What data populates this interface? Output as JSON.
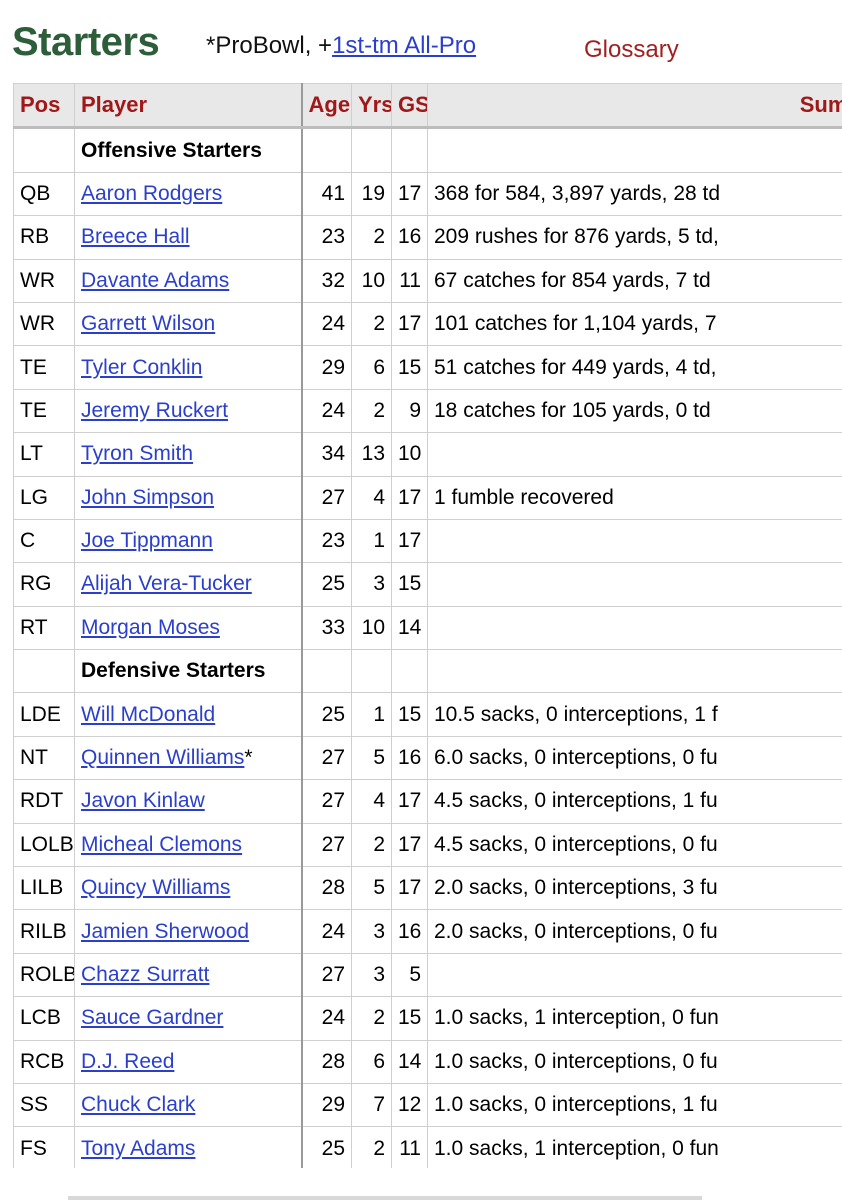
{
  "header": {
    "title": "Starters",
    "probowl_legend": "*ProBowl, +",
    "allpro_link": "1st-tm All-Pro",
    "glossary_link": "Glossary"
  },
  "table": {
    "columns": [
      "Pos",
      "Player",
      "Age",
      "Yrs",
      "GS",
      "Summ"
    ],
    "sections": [
      {
        "label": "Offensive Starters",
        "rows": [
          {
            "pos": "QB",
            "player": "Aaron Rodgers",
            "mark": "",
            "age": "41",
            "yrs": "19",
            "gs": "17",
            "summary": "368 for 584, 3,897 yards, 28 td"
          },
          {
            "pos": "RB",
            "player": "Breece Hall",
            "mark": "",
            "age": "23",
            "yrs": "2",
            "gs": "16",
            "summary": "209 rushes for 876 yards, 5 td,"
          },
          {
            "pos": "WR",
            "player": "Davante Adams",
            "mark": "",
            "age": "32",
            "yrs": "10",
            "gs": "11",
            "summary": "67 catches for 854 yards, 7 td"
          },
          {
            "pos": "WR",
            "player": "Garrett Wilson",
            "mark": "",
            "age": "24",
            "yrs": "2",
            "gs": "17",
            "summary": "101 catches for 1,104 yards, 7"
          },
          {
            "pos": "TE",
            "player": "Tyler Conklin",
            "mark": "",
            "age": "29",
            "yrs": "6",
            "gs": "15",
            "summary": "51 catches for 449 yards, 4 td,"
          },
          {
            "pos": "TE",
            "player": "Jeremy Ruckert",
            "mark": "",
            "age": "24",
            "yrs": "2",
            "gs": "9",
            "summary": "18 catches for 105 yards, 0 td"
          },
          {
            "pos": "LT",
            "player": "Tyron Smith",
            "mark": "",
            "age": "34",
            "yrs": "13",
            "gs": "10",
            "summary": ""
          },
          {
            "pos": "LG",
            "player": "John Simpson",
            "mark": "",
            "age": "27",
            "yrs": "4",
            "gs": "17",
            "summary": "1 fumble recovered"
          },
          {
            "pos": "C",
            "player": "Joe Tippmann",
            "mark": "",
            "age": "23",
            "yrs": "1",
            "gs": "17",
            "summary": ""
          },
          {
            "pos": "RG",
            "player": "Alijah Vera-Tucker",
            "mark": "",
            "age": "25",
            "yrs": "3",
            "gs": "15",
            "summary": ""
          },
          {
            "pos": "RT",
            "player": "Morgan Moses",
            "mark": "",
            "age": "33",
            "yrs": "10",
            "gs": "14",
            "summary": ""
          }
        ]
      },
      {
        "label": "Defensive Starters",
        "rows": [
          {
            "pos": "LDE",
            "player": "Will McDonald",
            "mark": "",
            "age": "25",
            "yrs": "1",
            "gs": "15",
            "summary": "10.5 sacks, 0 interceptions, 1 f"
          },
          {
            "pos": "NT",
            "player": "Quinnen Williams",
            "mark": "*",
            "age": "27",
            "yrs": "5",
            "gs": "16",
            "summary": "6.0 sacks, 0 interceptions, 0 fu"
          },
          {
            "pos": "RDT",
            "player": "Javon Kinlaw",
            "mark": "",
            "age": "27",
            "yrs": "4",
            "gs": "17",
            "summary": "4.5 sacks, 0 interceptions, 1 fu"
          },
          {
            "pos": "LOLB",
            "player": "Micheal Clemons",
            "mark": "",
            "age": "27",
            "yrs": "2",
            "gs": "17",
            "summary": "4.5 sacks, 0 interceptions, 0 fu"
          },
          {
            "pos": "LILB",
            "player": "Quincy Williams",
            "mark": "",
            "age": "28",
            "yrs": "5",
            "gs": "17",
            "summary": "2.0 sacks, 0 interceptions, 3 fu"
          },
          {
            "pos": "RILB",
            "player": "Jamien Sherwood",
            "mark": "",
            "age": "24",
            "yrs": "3",
            "gs": "16",
            "summary": "2.0 sacks, 0 interceptions, 0 fu"
          },
          {
            "pos": "ROLB",
            "player": "Chazz Surratt",
            "mark": "",
            "age": "27",
            "yrs": "3",
            "gs": "5",
            "summary": ""
          },
          {
            "pos": "LCB",
            "player": "Sauce Gardner",
            "mark": "",
            "age": "24",
            "yrs": "2",
            "gs": "15",
            "summary": "1.0 sacks, 1 interception, 0 fun"
          },
          {
            "pos": "RCB",
            "player": "D.J. Reed",
            "mark": "",
            "age": "28",
            "yrs": "6",
            "gs": "14",
            "summary": "1.0 sacks, 0 interceptions, 0 fu"
          },
          {
            "pos": "SS",
            "player": "Chuck Clark",
            "mark": "",
            "age": "29",
            "yrs": "7",
            "gs": "12",
            "summary": "1.0 sacks, 0 interceptions, 1 fu"
          },
          {
            "pos": "FS",
            "player": "Tony Adams",
            "mark": "",
            "age": "25",
            "yrs": "2",
            "gs": "11",
            "summary": "1.0 sacks, 1 interception, 0 fun"
          }
        ]
      }
    ]
  },
  "colors": {
    "title": "#2d5e3a",
    "header_text": "#a01818",
    "link": "#2a3fcc",
    "glossary": "#a02020"
  }
}
